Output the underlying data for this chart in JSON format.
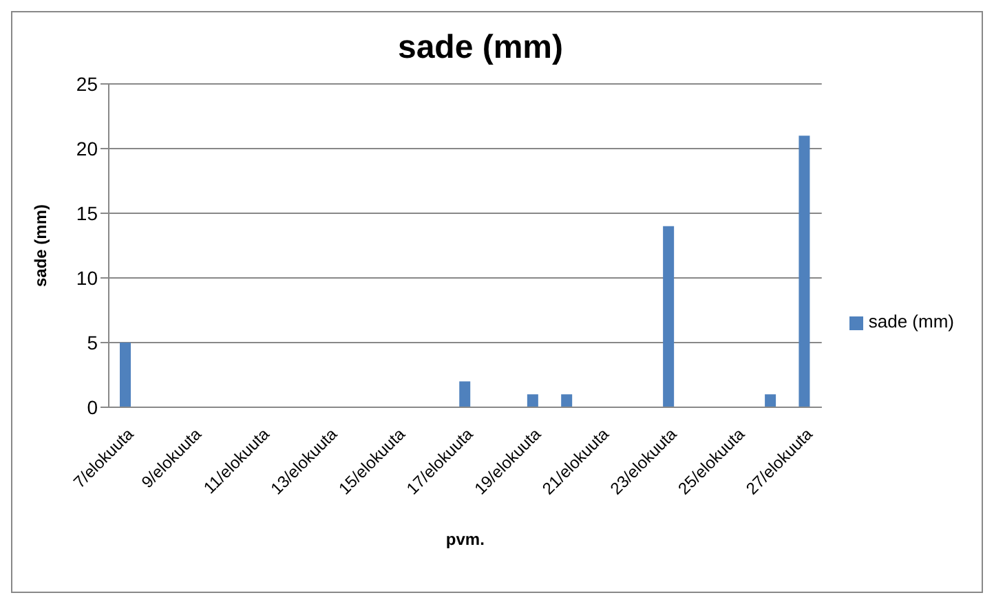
{
  "chart_data": {
    "type": "bar",
    "title": "sade (mm)",
    "xlabel": "pvm.",
    "ylabel": "sade (mm)",
    "categories": [
      "7/elokuuta",
      null,
      "9/elokuuta",
      null,
      "11/elokuuta",
      null,
      "13/elokuuta",
      null,
      "15/elokuuta",
      null,
      "17/elokuuta",
      null,
      "19/elokuuta",
      null,
      "21/elokuuta",
      null,
      "23/elokuuta",
      null,
      "25/elokuuta",
      null,
      "27/elokuuta"
    ],
    "series": [
      {
        "name": "sade (mm)",
        "color": "#4f81bd",
        "values": [
          5,
          0,
          0,
          0,
          0,
          0,
          0,
          0,
          0,
          0,
          2,
          0,
          1,
          1,
          0,
          0,
          14,
          0,
          0,
          1,
          21
        ]
      }
    ],
    "ylim": [
      0,
      25
    ],
    "yticks": [
      0,
      5,
      10,
      15,
      20,
      25
    ],
    "grid": "y",
    "legend": "right"
  }
}
